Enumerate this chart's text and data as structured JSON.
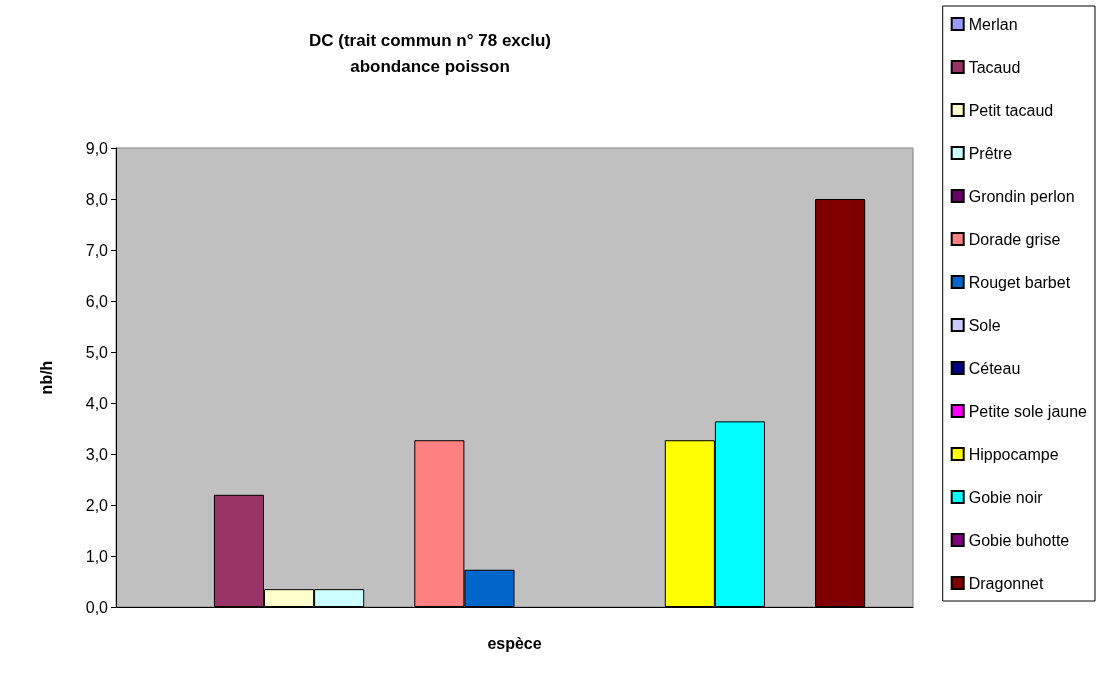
{
  "chart_data": {
    "type": "bar",
    "title": "DC (trait commun n° 78 exclu)\nabondance poisson",
    "xlabel": "espèce",
    "ylabel": "nb/h",
    "categories": [
      null
    ],
    "series": [
      {
        "name": "Merlan",
        "color": "#9999ff",
        "values": [
          0
        ]
      },
      {
        "name": "Tacaud",
        "color": "#993366",
        "values": [
          2.2
        ]
      },
      {
        "name": "Petit tacaud",
        "color": "#ffffcc",
        "values": [
          0.35
        ]
      },
      {
        "name": "Prêtre",
        "color": "#ccffff",
        "values": [
          0.35
        ]
      },
      {
        "name": "Grondin perlon",
        "color": "#660066",
        "values": [
          0
        ]
      },
      {
        "name": "Dorade grise",
        "color": "#ff8080",
        "values": [
          3.27
        ]
      },
      {
        "name": "Rouget barbet",
        "color": "#0066cc",
        "values": [
          0.73
        ]
      },
      {
        "name": "Sole",
        "color": "#ccccff",
        "values": [
          0
        ]
      },
      {
        "name": "Céteau",
        "color": "#000080",
        "values": [
          0
        ]
      },
      {
        "name": "Petite sole jaune",
        "color": "#ff00ff",
        "values": [
          0
        ]
      },
      {
        "name": "Hippocampe",
        "color": "#ffff00",
        "values": [
          3.27
        ]
      },
      {
        "name": "Gobie noir",
        "color": "#00ffff",
        "values": [
          3.64
        ]
      },
      {
        "name": "Gobie buhotte",
        "color": "#800080",
        "values": [
          0
        ]
      },
      {
        "name": "Dragonnet",
        "color": "#800000",
        "values": [
          8.0
        ]
      }
    ],
    "ylim": [
      0,
      9
    ],
    "yticks": [
      {
        "value": 0,
        "label": "0,0"
      },
      {
        "value": 1,
        "label": "1,0"
      },
      {
        "value": 2,
        "label": "2,0"
      },
      {
        "value": 3,
        "label": "3,0"
      },
      {
        "value": 4,
        "label": "4,0"
      },
      {
        "value": 5,
        "label": "5,0"
      },
      {
        "value": 6,
        "label": "6,0"
      },
      {
        "value": 7,
        "label": "7,0"
      },
      {
        "value": 8,
        "label": "8,0"
      },
      {
        "value": 9,
        "label": "9,0"
      }
    ],
    "grid": false,
    "legend": "right"
  }
}
